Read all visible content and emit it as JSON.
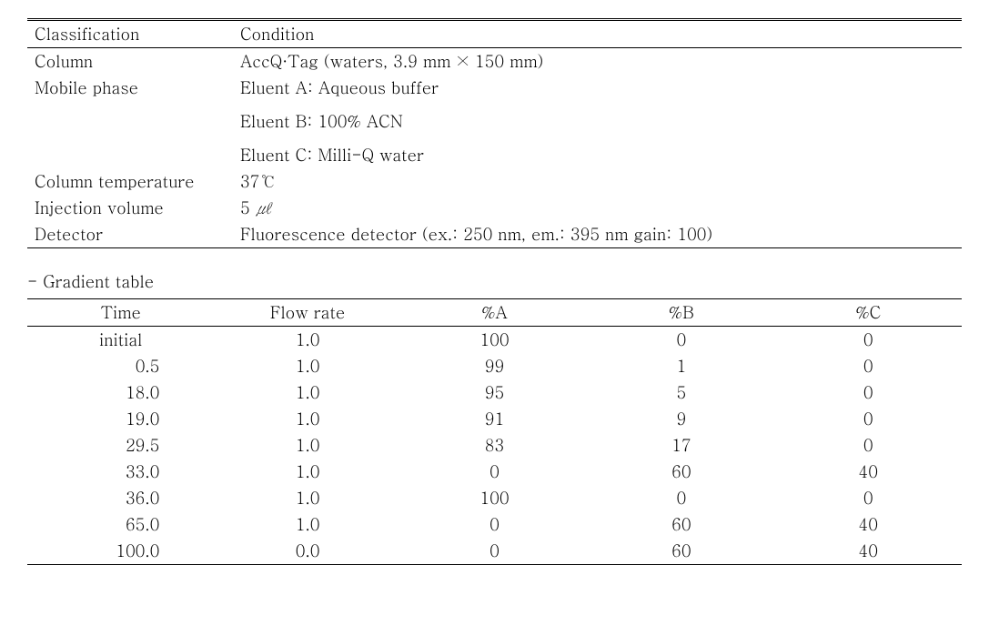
{
  "table1": {
    "headers": {
      "classification": "Classification",
      "condition": "Condition"
    },
    "rows": [
      {
        "label": "Column",
        "value": "AccQ·Tag (waters, 3.9 mm × 150 mm)"
      },
      {
        "label": "Mobile phase",
        "value": "Eluent A: Aqueous buffer"
      },
      {
        "label": "",
        "value": "Eluent B: 100% ACN"
      },
      {
        "label": "",
        "value": "Eluent C: Milli-Q water"
      },
      {
        "label": "Column temperature",
        "value": "37℃"
      },
      {
        "label": "Injection volume",
        "value_prefix": "5 ",
        "value_unit": "㎕"
      },
      {
        "label": "Detector",
        "value": "Fluorescence detector (ex.: 250 nm, em.: 395 nm gain: 100)"
      }
    ]
  },
  "gradient_label": "- Gradient table",
  "table2": {
    "headers": {
      "time": "Time",
      "flow": "Flow rate",
      "a": "%A",
      "b": "%B",
      "c": "%C"
    },
    "rows": [
      {
        "time": "initial",
        "flow": "1.0",
        "a": "100",
        "b": "0",
        "c": "0",
        "align": "center"
      },
      {
        "time": "0.5",
        "flow": "1.0",
        "a": "99",
        "b": "1",
        "c": "0",
        "align": "right"
      },
      {
        "time": "18.0",
        "flow": "1.0",
        "a": "95",
        "b": "5",
        "c": "0",
        "align": "right"
      },
      {
        "time": "19.0",
        "flow": "1.0",
        "a": "91",
        "b": "9",
        "c": "0",
        "align": "right"
      },
      {
        "time": "29.5",
        "flow": "1.0",
        "a": "83",
        "b": "17",
        "c": "0",
        "align": "right"
      },
      {
        "time": "33.0",
        "flow": "1.0",
        "a": "0",
        "b": "60",
        "c": "40",
        "align": "right"
      },
      {
        "time": "36.0",
        "flow": "1.0",
        "a": "100",
        "b": "0",
        "c": "0",
        "align": "right"
      },
      {
        "time": "65.0",
        "flow": "1.0",
        "a": "0",
        "b": "60",
        "c": "40",
        "align": "right"
      },
      {
        "time": "100.0",
        "flow": "0.0",
        "a": "0",
        "b": "60",
        "c": "40",
        "align": "right"
      }
    ]
  },
  "layout": {
    "t1_col1_width_pct": 22,
    "t2_colwidths_pct": [
      20,
      20,
      20,
      20,
      20
    ]
  },
  "colors": {
    "text": "#000000",
    "background": "#ffffff",
    "rule": "#000000"
  },
  "fontsize_pt": 14
}
